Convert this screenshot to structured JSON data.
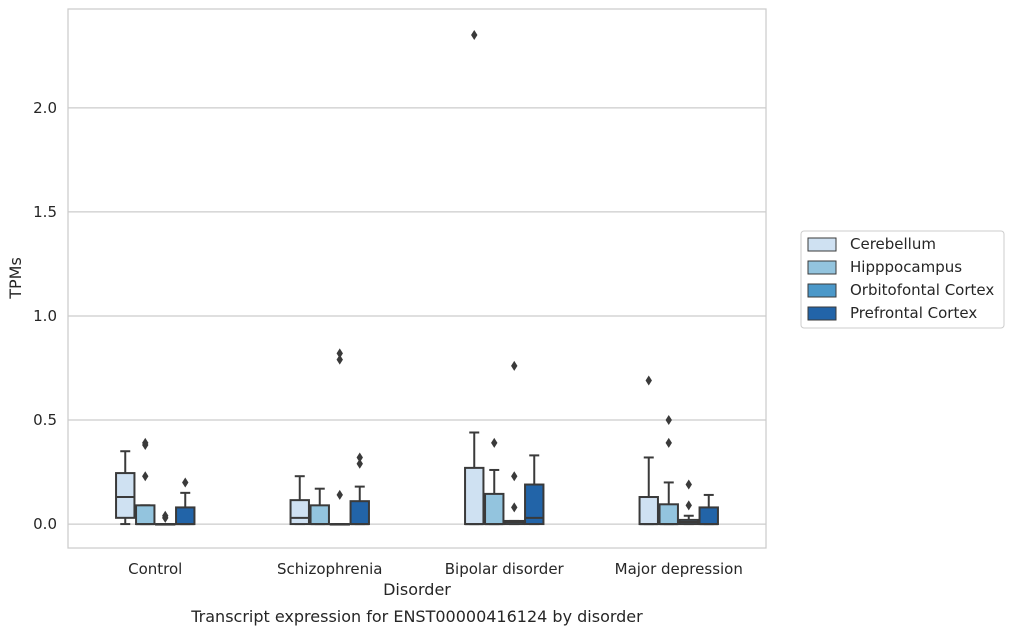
{
  "chart_data": {
    "type": "box",
    "caption": "Transcript expression for ENST00000416124 by disorder",
    "xlabel": "Disorder",
    "ylabel": "TPMs",
    "ylim": [
      -0.115,
      2.475
    ],
    "yticks": [
      0.0,
      0.5,
      1.0,
      1.5,
      2.0
    ],
    "ytick_labels": [
      "0.0",
      "0.5",
      "1.0",
      "1.5",
      "2.0"
    ],
    "grid": "horizontal",
    "legend_position": "right",
    "categories": [
      "Control",
      "Schizophrenia",
      "Bipolar disorder",
      "Major depression"
    ],
    "series": [
      {
        "name": "Cerebellum",
        "color": "#cfe1f2",
        "boxes": [
          {
            "q1": 0.03,
            "median": 0.13,
            "q3": 0.245,
            "whisker_low": 0.0,
            "whisker_high": 0.35,
            "outliers": []
          },
          {
            "q1": 0.0,
            "median": 0.03,
            "q3": 0.115,
            "whisker_low": 0.0,
            "whisker_high": 0.23,
            "outliers": []
          },
          {
            "q1": 0.0,
            "median": 0.0,
            "q3": 0.27,
            "whisker_low": 0.0,
            "whisker_high": 0.44,
            "outliers": [
              2.35
            ]
          },
          {
            "q1": 0.0,
            "median": 0.0,
            "q3": 0.13,
            "whisker_low": 0.0,
            "whisker_high": 0.32,
            "outliers": [
              0.69
            ]
          }
        ]
      },
      {
        "name": "Hipppocampus",
        "color": "#93c4de",
        "boxes": [
          {
            "q1": 0.0,
            "median": 0.0,
            "q3": 0.09,
            "whisker_low": 0.0,
            "whisker_high": 0.09,
            "outliers": [
              0.23,
              0.38,
              0.39
            ]
          },
          {
            "q1": 0.0,
            "median": 0.0,
            "q3": 0.09,
            "whisker_low": 0.0,
            "whisker_high": 0.17,
            "outliers": []
          },
          {
            "q1": 0.0,
            "median": 0.0,
            "q3": 0.145,
            "whisker_low": 0.0,
            "whisker_high": 0.26,
            "outliers": [
              0.39
            ]
          },
          {
            "q1": 0.0,
            "median": 0.0,
            "q3": 0.095,
            "whisker_low": 0.0,
            "whisker_high": 0.2,
            "outliers": [
              0.39,
              0.5
            ]
          }
        ]
      },
      {
        "name": "Orbitofontal Cortex",
        "color": "#4b98c9",
        "boxes": [
          {
            "q1": 0.0,
            "median": 0.0,
            "q3": 0.0,
            "whisker_low": 0.0,
            "whisker_high": 0.0,
            "outliers": [
              0.03,
              0.04
            ]
          },
          {
            "q1": 0.0,
            "median": 0.0,
            "q3": 0.0,
            "whisker_low": 0.0,
            "whisker_high": 0.0,
            "outliers": [
              0.14,
              0.79,
              0.82
            ]
          },
          {
            "q1": 0.0,
            "median": 0.01,
            "q3": 0.015,
            "whisker_low": 0.0,
            "whisker_high": 0.015,
            "outliers": [
              0.08,
              0.23,
              0.76
            ]
          },
          {
            "q1": 0.0,
            "median": 0.01,
            "q3": 0.02,
            "whisker_low": 0.0,
            "whisker_high": 0.04,
            "outliers": [
              0.09,
              0.19
            ]
          }
        ]
      },
      {
        "name": "Prefrontal Cortex",
        "color": "#2264a8",
        "boxes": [
          {
            "q1": 0.0,
            "median": 0.0,
            "q3": 0.08,
            "whisker_low": 0.0,
            "whisker_high": 0.15,
            "outliers": [
              0.2
            ]
          },
          {
            "q1": 0.0,
            "median": 0.0,
            "q3": 0.11,
            "whisker_low": 0.0,
            "whisker_high": 0.18,
            "outliers": [
              0.29,
              0.32
            ]
          },
          {
            "q1": 0.0,
            "median": 0.03,
            "q3": 0.19,
            "whisker_low": 0.0,
            "whisker_high": 0.33,
            "outliers": []
          },
          {
            "q1": 0.0,
            "median": 0.0,
            "q3": 0.08,
            "whisker_low": 0.0,
            "whisker_high": 0.14,
            "outliers": []
          }
        ]
      }
    ]
  }
}
